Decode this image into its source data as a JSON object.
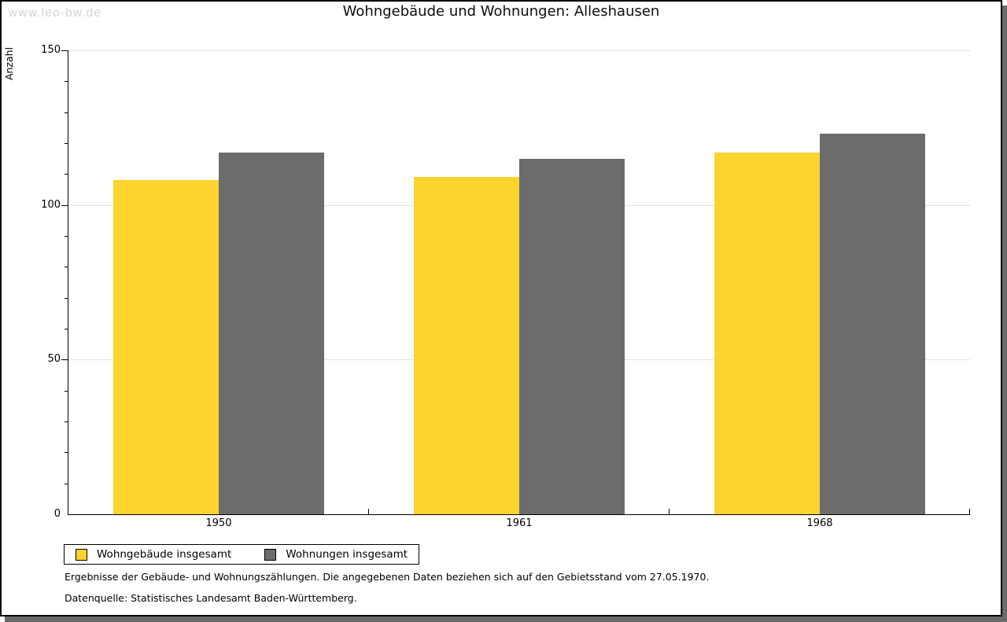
{
  "watermark": "www.leo-bw.de",
  "title": "Wohngebäude und Wohnungen: Alleshausen",
  "chart_data": {
    "type": "bar",
    "title": "Wohngebäude und Wohnungen: Alleshausen",
    "categories": [
      "1950",
      "1961",
      "1968"
    ],
    "series": [
      {
        "name": "Wohngebäude insgesamt",
        "color": "#fcd32f",
        "values": [
          108,
          109,
          117
        ]
      },
      {
        "name": "Wohnungen insgesamt",
        "color": "#6c6c6c",
        "values": [
          117,
          115,
          123
        ]
      }
    ],
    "xlabel": "",
    "ylabel": "Anzahl",
    "ylim": [
      0,
      150
    ],
    "y_ticks": [
      0,
      50,
      100,
      150
    ],
    "y_minor_step": 10,
    "grid": true,
    "legend_position": "bottom-left"
  },
  "footnotes": [
    "Ergebnisse der Gebäude- und Wohnungszählungen. Die angegebenen Daten beziehen sich auf den Gebietsstand vom 27.05.1970.",
    "Datenquelle: Statistisches Landesamt Baden-Württemberg."
  ],
  "colors": {
    "bar_yellow": "#fcd32f",
    "bar_gray": "#6c6c6c",
    "gridline": "#e2e2e2",
    "axis": "#000000",
    "watermark": "#d6d6d6",
    "shadow": "#6a6a6a",
    "window_border": "#000000"
  }
}
